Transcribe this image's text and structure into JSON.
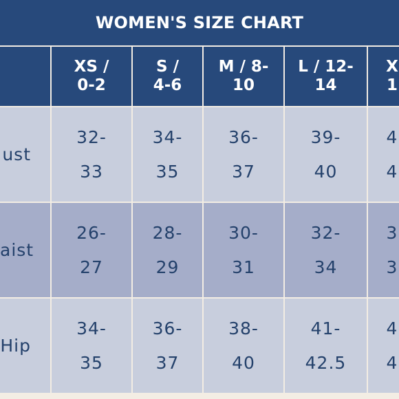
{
  "title": "WOMEN'S SIZE CHART",
  "columns": [
    "",
    "XS /\n0-2",
    "S /\n4-6",
    "M / 8-\n10",
    "L / 12-\n14",
    "X\n1"
  ],
  "rows": [
    {
      "label": "ust",
      "values": [
        "32-\n33",
        "34-\n35",
        "36-\n37",
        "39-\n40",
        "4\n4"
      ]
    },
    {
      "label": "aist",
      "values": [
        "26-\n27",
        "28-\n29",
        "30-\n31",
        "32-\n34",
        "3\n3"
      ]
    },
    {
      "label": "Hip",
      "values": [
        "34-\n35",
        "36-\n37",
        "38-\n40",
        "41-\n42.5",
        "4\n4"
      ]
    }
  ],
  "colors": {
    "header": "#27497b",
    "cell_light": "#c8cedd",
    "cell_dark": "#a5adc9",
    "text": "#24416b"
  }
}
